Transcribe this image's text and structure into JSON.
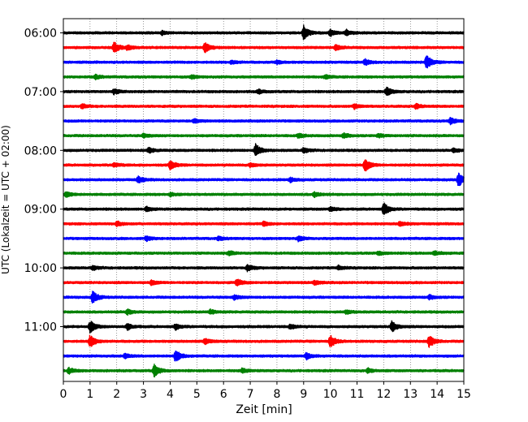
{
  "chart_data": {
    "type": "line",
    "title": "",
    "xlabel": "Zeit  [min]",
    "ylabel": "UTC (Lokalzeit = UTC + 02:00)",
    "xlim": [
      0,
      15
    ],
    "x_ticks": [
      "0",
      "1",
      "2",
      "3",
      "4",
      "5",
      "6",
      "7",
      "8",
      "9",
      "10",
      "11",
      "12",
      "13",
      "14",
      "15"
    ],
    "y_ticks": [
      "06:00",
      "07:00",
      "08:00",
      "09:00",
      "10:00",
      "11:00"
    ],
    "grid": "vertical dotted lines at each minute",
    "trace_colors": [
      "#000000",
      "#ff0000",
      "#0000ff",
      "#008000"
    ],
    "trace_interval_minutes": 15,
    "trace_count": 24,
    "series": [
      {
        "start": "06:00",
        "events": [
          [
            9.0,
            1.0
          ],
          [
            10.0,
            0.45
          ],
          [
            10.6,
            0.4
          ],
          [
            3.7,
            0.25
          ]
        ]
      },
      {
        "start": "06:15",
        "events": [
          [
            1.9,
            0.8
          ],
          [
            5.3,
            0.75
          ],
          [
            2.4,
            0.3
          ],
          [
            10.2,
            0.35
          ]
        ]
      },
      {
        "start": "06:30",
        "events": [
          [
            13.6,
            1.0
          ],
          [
            11.3,
            0.4
          ],
          [
            6.3,
            0.25
          ],
          [
            8.0,
            0.25
          ]
        ]
      },
      {
        "start": "06:45",
        "events": [
          [
            1.2,
            0.3
          ],
          [
            4.8,
            0.25
          ],
          [
            9.8,
            0.25
          ]
        ]
      },
      {
        "start": "07:00",
        "events": [
          [
            12.1,
            0.6
          ],
          [
            1.9,
            0.35
          ],
          [
            7.3,
            0.3
          ]
        ]
      },
      {
        "start": "07:15",
        "events": [
          [
            0.7,
            0.3
          ],
          [
            10.9,
            0.35
          ],
          [
            13.2,
            0.35
          ]
        ]
      },
      {
        "start": "07:30",
        "events": [
          [
            14.5,
            0.45
          ],
          [
            4.9,
            0.25
          ]
        ]
      },
      {
        "start": "07:45",
        "events": [
          [
            8.8,
            0.3
          ],
          [
            10.5,
            0.35
          ],
          [
            3.0,
            0.25
          ],
          [
            11.8,
            0.25
          ]
        ]
      },
      {
        "start": "08:00",
        "events": [
          [
            7.2,
            0.85
          ],
          [
            3.2,
            0.35
          ],
          [
            9.0,
            0.35
          ],
          [
            14.6,
            0.3
          ]
        ]
      },
      {
        "start": "08:15",
        "events": [
          [
            4.0,
            0.65
          ],
          [
            11.3,
            0.9
          ],
          [
            1.9,
            0.3
          ],
          [
            7.0,
            0.3
          ]
        ]
      },
      {
        "start": "08:30",
        "events": [
          [
            14.8,
            1.0
          ],
          [
            2.8,
            0.45
          ],
          [
            8.5,
            0.3
          ]
        ]
      },
      {
        "start": "08:45",
        "events": [
          [
            0.1,
            0.4
          ],
          [
            4.0,
            0.25
          ],
          [
            9.4,
            0.35
          ]
        ]
      },
      {
        "start": "09:00",
        "events": [
          [
            12.0,
            0.9
          ],
          [
            3.1,
            0.3
          ],
          [
            10.0,
            0.3
          ]
        ]
      },
      {
        "start": "09:15",
        "events": [
          [
            2.0,
            0.3
          ],
          [
            7.5,
            0.3
          ],
          [
            12.6,
            0.3
          ]
        ]
      },
      {
        "start": "09:30",
        "events": [
          [
            3.1,
            0.35
          ],
          [
            8.8,
            0.35
          ],
          [
            5.8,
            0.25
          ]
        ]
      },
      {
        "start": "09:45",
        "events": [
          [
            6.2,
            0.3
          ],
          [
            11.8,
            0.25
          ],
          [
            13.9,
            0.3
          ]
        ]
      },
      {
        "start": "10:00",
        "events": [
          [
            6.9,
            0.45
          ],
          [
            1.1,
            0.3
          ],
          [
            10.3,
            0.3
          ]
        ]
      },
      {
        "start": "10:15",
        "events": [
          [
            6.5,
            0.5
          ],
          [
            3.3,
            0.3
          ],
          [
            9.4,
            0.3
          ]
        ]
      },
      {
        "start": "10:30",
        "events": [
          [
            1.1,
            0.85
          ],
          [
            6.4,
            0.3
          ],
          [
            13.7,
            0.3
          ]
        ]
      },
      {
        "start": "10:45",
        "events": [
          [
            2.4,
            0.35
          ],
          [
            5.5,
            0.3
          ],
          [
            10.6,
            0.25
          ]
        ]
      },
      {
        "start": "11:00",
        "events": [
          [
            1.0,
            0.85
          ],
          [
            12.3,
            0.75
          ],
          [
            2.4,
            0.45
          ],
          [
            4.2,
            0.4
          ],
          [
            8.5,
            0.35
          ]
        ]
      },
      {
        "start": "11:15",
        "events": [
          [
            1.0,
            0.85
          ],
          [
            10.0,
            0.9
          ],
          [
            13.7,
            0.85
          ],
          [
            5.3,
            0.4
          ]
        ]
      },
      {
        "start": "11:30",
        "events": [
          [
            4.2,
            0.85
          ],
          [
            9.1,
            0.45
          ],
          [
            2.3,
            0.3
          ]
        ]
      },
      {
        "start": "11:45",
        "events": [
          [
            3.4,
            0.85
          ],
          [
            0.2,
            0.4
          ],
          [
            6.7,
            0.3
          ],
          [
            11.4,
            0.3
          ]
        ]
      }
    ]
  }
}
